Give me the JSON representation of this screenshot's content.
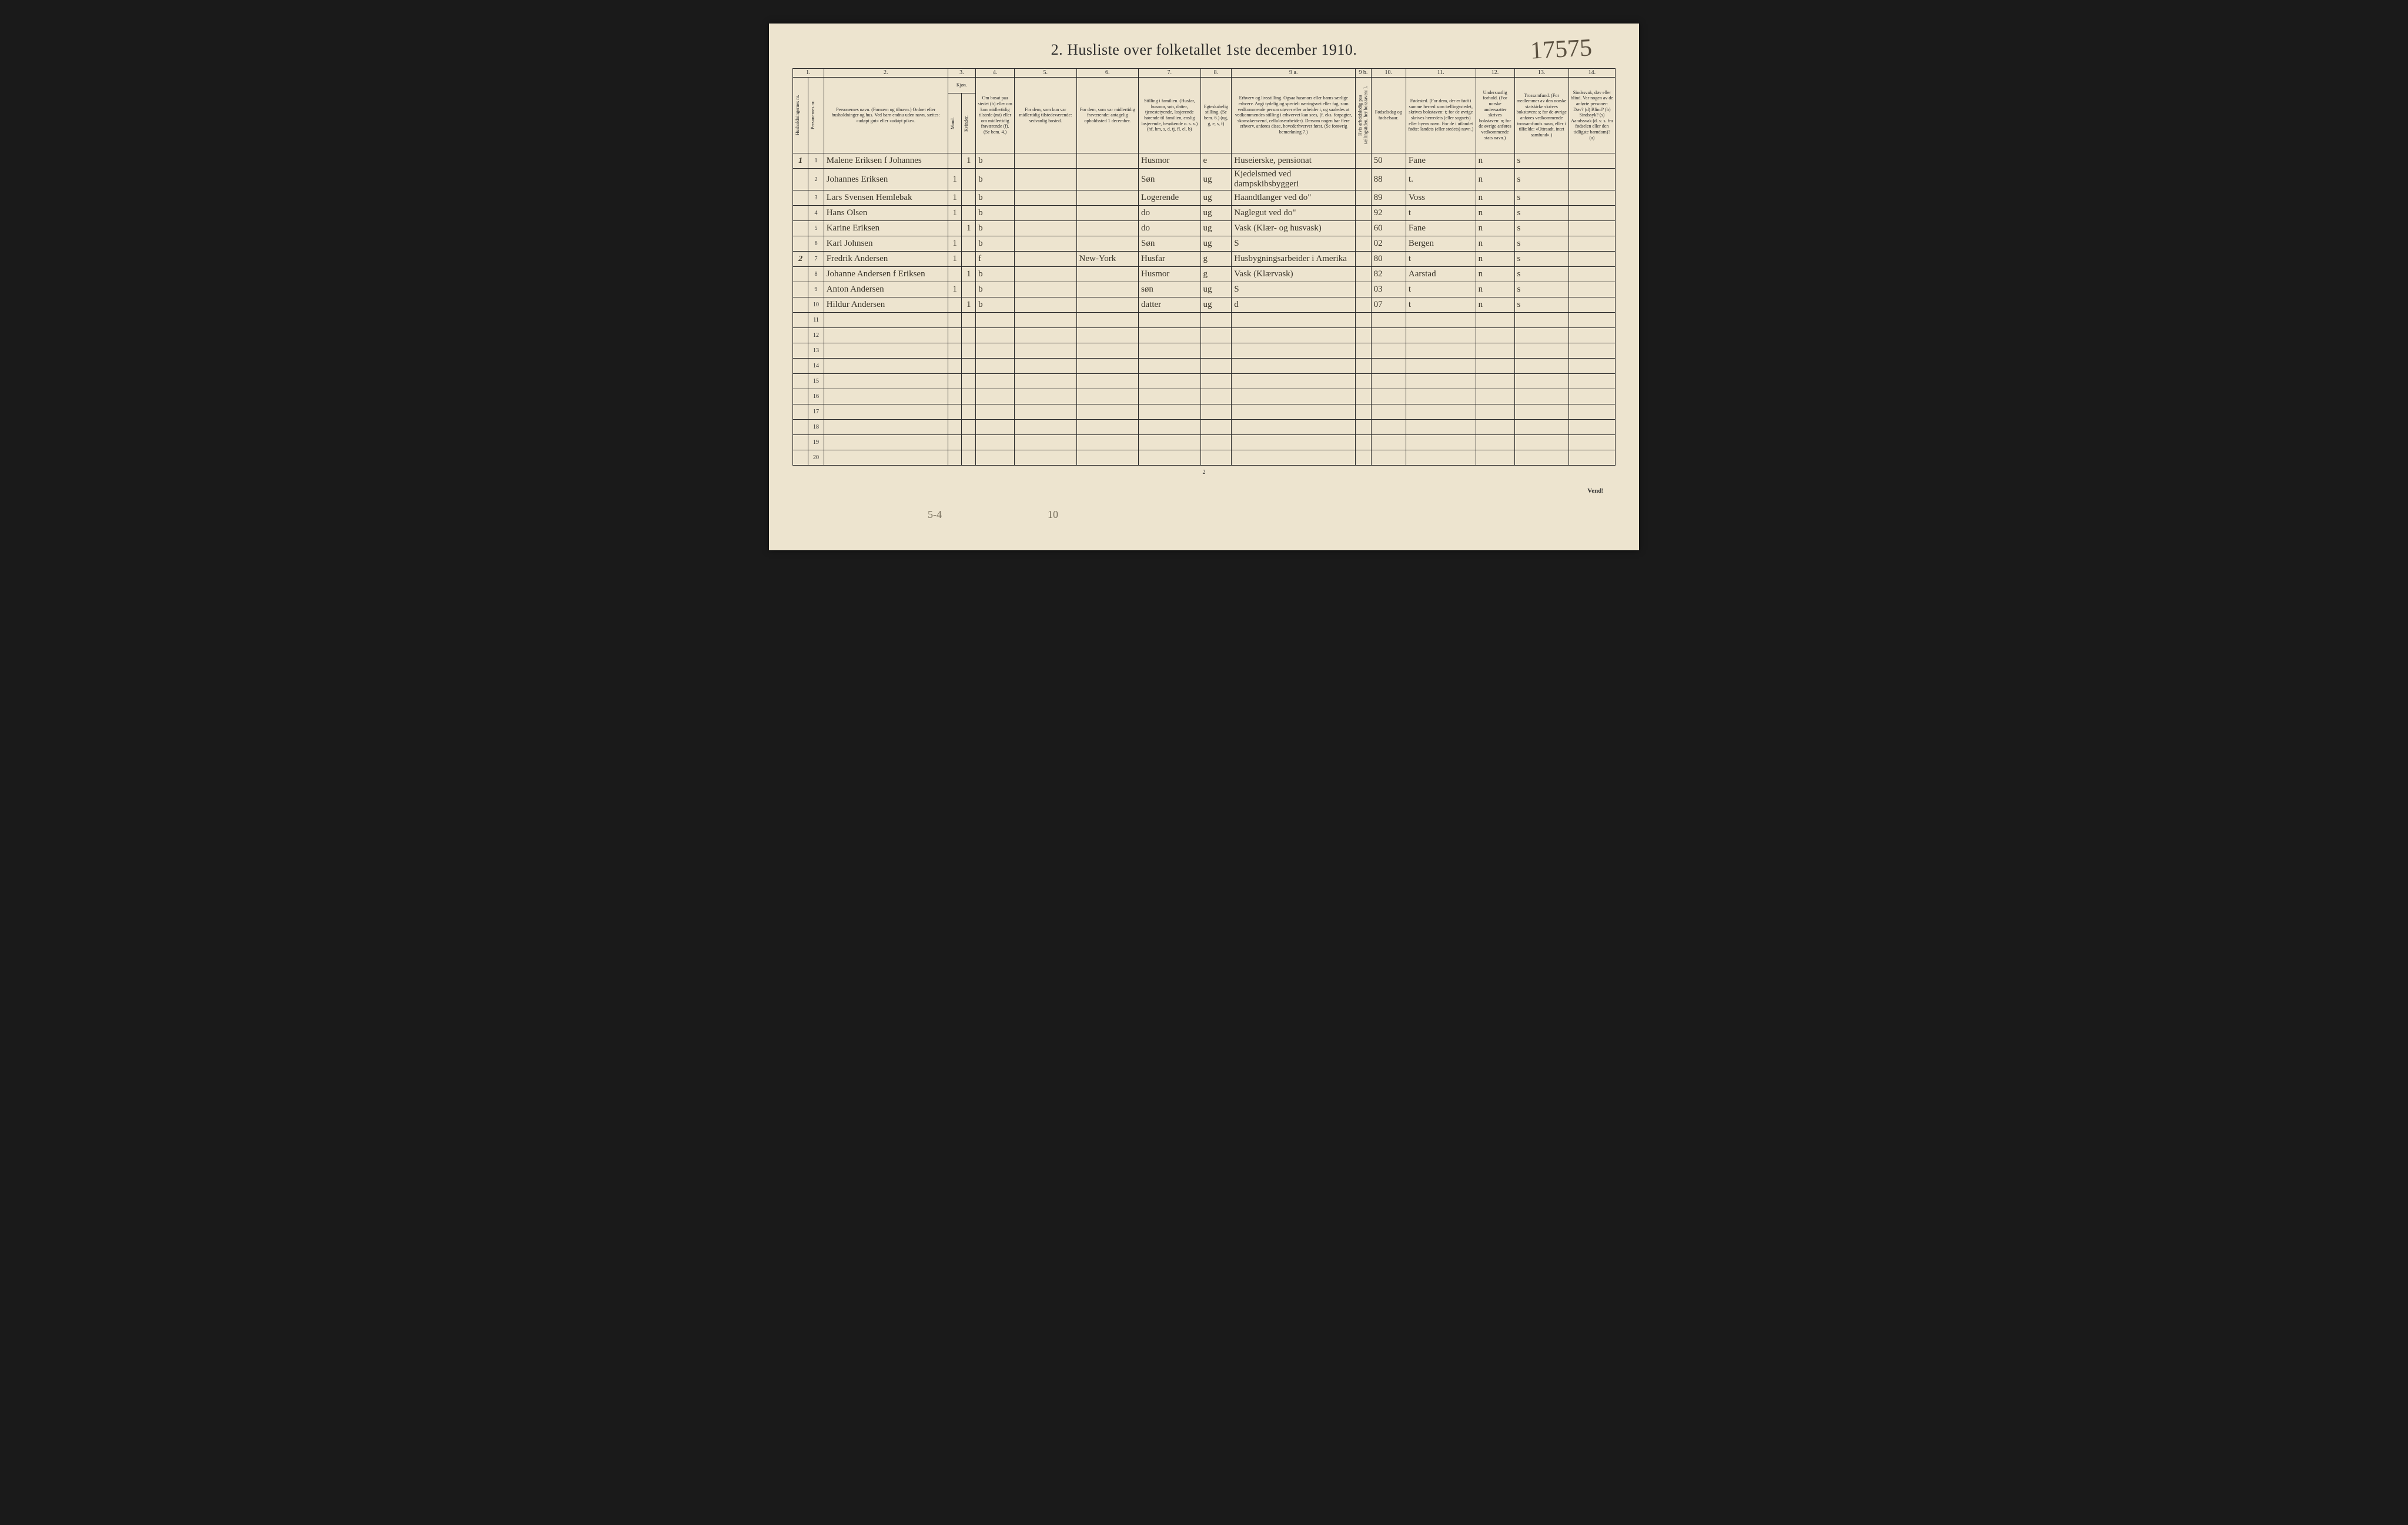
{
  "corner_number": "17575",
  "title": "2. Husliste over folketallet 1ste december 1910.",
  "col_numbers": [
    "1.",
    "2.",
    "3.",
    "4.",
    "5.",
    "6.",
    "7.",
    "8.",
    "9 a.",
    "9 b.",
    "10.",
    "11.",
    "12.",
    "13.",
    "14."
  ],
  "headers": {
    "h1a": "Husholdningernes nr.",
    "h1b": "Personernes nr.",
    "h2": "Personernes navn.\n(Fornavn og tilnavn.)\nOrdnet efter husholdninger og hus.\nVed barn endnu uden navn, sættes: «udøpt gut» eller «udøpt pike».",
    "h3": "Kjøn.",
    "h3a": "Mand.",
    "h3b": "Kvinder.",
    "h3s": "m. | k.",
    "h4": "Om bosat paa stedet (b) eller om kun midlertidig tilstede (mt) eller om midlertidig fraværende (f).\n(Se bem. 4.)",
    "h5": "For dem, som kun var midlertidig tilstedeværende:\nsedvanlig bosted.",
    "h6": "For dem, som var midlertidig fraværende:\nantagelig opholdssted 1 december.",
    "h7": "Stilling i familien.\n(Husfar, husmor, søn, datter, tjenestetyende, losjerende hørende til familien, enslig losjerende, besøkende o. s. v.)\n(hf, hm, s, d, tj, fl, el, b)",
    "h8": "Egteskabelig stilling.\n(Se bem. 6.)\n(ug, g, e, s, f)",
    "h9a": "Erhverv og livsstilling.\nOgsaa husmors eller barns særlige erhverv.\nAngi tydelig og specielt næringsvei eller fag, som vedkommende person utøver eller arbeider i, og saaledes at vedkommendes stilling i erhvervet kan sees, (f. eks. forpagter, skomakersvend, cellulosearbeider). Dersom nogen har flere erhverv, anføres disse, hovederhvervet først.\n(Se forøvrig bemerkning 7.)",
    "h9b": "Hvis arbeidsledig paa tællingstiden, her bokstaven: l.",
    "h10": "Fødselsdag og fødselsaar.",
    "h11": "Fødested.\n(For dem, der er født i samme herred som tællingsstedet, skrives bokstaven: t; for de øvrige skrives herredets (eller sognets) eller byens navn. For de i utlandet fødte: landets (eller stedets) navn.)",
    "h12": "Undersaatlig forhold.\n(For norske undersaatter skrives bokstaven: n; for de øvrige anføres vedkommende stats navn.)",
    "h13": "Trossamfund.\n(For medlemmer av den norske statskirke skrives bokstaven: s; for de øvrige anføres vedkommende trossamfunds navn, eller i tilfælde: «Uttraadt, intet samfund».)",
    "h14": "Sindssvak, døv eller blind.\nVar nogen av de anførte personer:\nDøv? (d)\nBlind? (b)\nSindssyk? (s)\nAandssvak (d. v. s. fra fødselen eller den tidligste barndom)? (a)"
  },
  "rows": [
    {
      "hh": "1",
      "pn": "1",
      "name": "Malene Eriksen f Johannes",
      "m": "",
      "k": "1",
      "res": "b",
      "mt": "",
      "fr": "",
      "fam": "Husmor",
      "eg": "e",
      "erhv": "Huseierske, pensionat",
      "al": "",
      "fdag": "50",
      "fsted": "Fane",
      "nat": "n",
      "tro": "s",
      "sd": ""
    },
    {
      "hh": "",
      "pn": "2",
      "name": "Johannes Eriksen",
      "m": "1",
      "k": "",
      "res": "b",
      "mt": "",
      "fr": "",
      "fam": "Søn",
      "eg": "ug",
      "erhv": "Kjedelsmed ved dampskibsbyggeri",
      "al": "",
      "fdag": "88",
      "fsted": "t.",
      "nat": "n",
      "tro": "s",
      "sd": ""
    },
    {
      "hh": "",
      "pn": "3",
      "name": "Lars Svensen Hemlebak",
      "m": "1",
      "k": "",
      "res": "b",
      "mt": "",
      "fr": "",
      "fam": "Logerende",
      "eg": "ug",
      "erhv": "Haandtlanger ved do\"",
      "al": "",
      "fdag": "89",
      "fsted": "Voss",
      "nat": "n",
      "tro": "s",
      "sd": ""
    },
    {
      "hh": "",
      "pn": "4",
      "name": "Hans Olsen",
      "m": "1",
      "k": "",
      "res": "b",
      "mt": "",
      "fr": "",
      "fam": "do",
      "eg": "ug",
      "erhv": "Naglegut ved do\"",
      "al": "",
      "fdag": "92",
      "fsted": "t",
      "nat": "n",
      "tro": "s",
      "sd": ""
    },
    {
      "hh": "",
      "pn": "5",
      "name": "Karine Eriksen",
      "m": "",
      "k": "1",
      "res": "b",
      "mt": "",
      "fr": "",
      "fam": "do",
      "eg": "ug",
      "erhv": "Vask (Klær- og husvask)",
      "al": "",
      "fdag": "60",
      "fsted": "Fane",
      "nat": "n",
      "tro": "s",
      "sd": ""
    },
    {
      "hh": "",
      "pn": "6",
      "name": "Karl Johnsen",
      "m": "1",
      "k": "",
      "res": "b",
      "mt": "",
      "fr": "",
      "fam": "Søn",
      "eg": "ug",
      "erhv": "S",
      "al": "",
      "fdag": "02",
      "fsted": "Bergen",
      "nat": "n",
      "tro": "s",
      "sd": ""
    },
    {
      "hh": "2",
      "pn": "7",
      "name": "Fredrik Andersen",
      "m": "1",
      "k": "",
      "res": "f",
      "mt": "",
      "fr": "New-York",
      "fam": "Husfar",
      "eg": "g",
      "erhv": "Husbygningsarbeider i Amerika",
      "al": "",
      "fdag": "80",
      "fsted": "t",
      "nat": "n",
      "tro": "s",
      "sd": ""
    },
    {
      "hh": "",
      "pn": "8",
      "name": "Johanne Andersen f Eriksen",
      "m": "",
      "k": "1",
      "res": "b",
      "mt": "",
      "fr": "",
      "fam": "Husmor",
      "eg": "g",
      "erhv": "Vask (Klærvask)",
      "al": "",
      "fdag": "82",
      "fsted": "Aarstad",
      "nat": "n",
      "tro": "s",
      "sd": ""
    },
    {
      "hh": "",
      "pn": "9",
      "name": "Anton Andersen",
      "m": "1",
      "k": "",
      "res": "b",
      "mt": "",
      "fr": "",
      "fam": "søn",
      "eg": "ug",
      "erhv": "S",
      "al": "",
      "fdag": "03",
      "fsted": "t",
      "nat": "n",
      "tro": "s",
      "sd": ""
    },
    {
      "hh": "",
      "pn": "10",
      "name": "Hildur Andersen",
      "m": "",
      "k": "1",
      "res": "b",
      "mt": "",
      "fr": "",
      "fam": "datter",
      "eg": "ug",
      "erhv": "d",
      "al": "",
      "fdag": "07",
      "fsted": "t",
      "nat": "n",
      "tro": "s",
      "sd": ""
    }
  ],
  "empty_rows": [
    "11",
    "12",
    "13",
    "14",
    "15",
    "16",
    "17",
    "18",
    "19",
    "20"
  ],
  "page_foot": "2",
  "vend": "Vend!",
  "bottom_marks": {
    "a": "5-4",
    "b": "10"
  },
  "colors": {
    "page_bg": "#ede4cf",
    "ink": "#2a2a2a",
    "script": "#3a352a",
    "faint": "#7a7260"
  },
  "col_widths_pct": [
    2,
    2,
    16,
    1.8,
    1.8,
    5,
    8,
    8,
    8,
    4,
    16,
    2,
    4.5,
    9,
    5,
    7,
    6
  ]
}
